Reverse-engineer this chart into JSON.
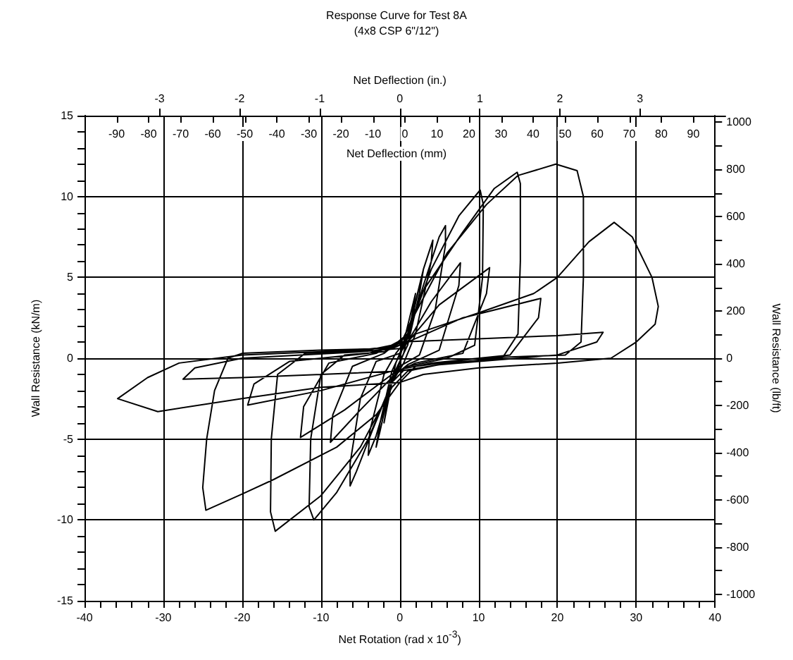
{
  "chart_data": [
    {
      "type": "line",
      "title": "Response Curve for Test 8A",
      "subtitle": "(4x8 CSP 6\"/12\")",
      "xlabel": "Net Rotation (rad x 10$^{-3}$)",
      "ylabel": "Wall Resistance (kN/m)",
      "y2label": "Wall Resistance (lb/ft)",
      "x2label": "Net Deflection (in.)",
      "xlim": [
        -40,
        40
      ],
      "xticks": [
        -40,
        {
          "value": -38,
          "label": null
        },
        {
          "value": -36,
          "label": null
        },
        {
          "value": -34,
          "label": null
        },
        {
          "value": -32,
          "label": null
        },
        -30,
        {
          "value": -28,
          "label": null
        },
        {
          "value": -26,
          "label": null
        },
        {
          "value": -24,
          "label": null
        },
        {
          "value": -22,
          "label": null
        },
        -20,
        {
          "value": -18,
          "label": null
        },
        {
          "value": -16,
          "label": null
        },
        {
          "value": -14,
          "label": null
        },
        {
          "value": -12,
          "label": null
        },
        -10,
        {
          "value": -8,
          "label": null
        },
        {
          "value": -6,
          "label": null
        },
        {
          "value": -4,
          "label": null
        },
        {
          "value": -2,
          "label": null
        },
        0,
        {
          "value": 2,
          "label": null
        },
        {
          "value": 4,
          "label": null
        },
        {
          "value": 6,
          "label": null
        },
        {
          "value": 8,
          "label": null
        },
        10,
        {
          "value": 12,
          "label": null
        },
        {
          "value": 14,
          "label": null
        },
        {
          "value": 16,
          "label": null
        },
        {
          "value": 18,
          "label": null
        },
        20,
        {
          "value": 22,
          "label": null
        },
        {
          "value": 24,
          "label": null
        },
        {
          "value": 26,
          "label": null
        },
        {
          "value": 28,
          "label": null
        },
        30,
        {
          "value": 32,
          "label": null
        },
        {
          "value": 34,
          "label": null
        },
        {
          "value": 36,
          "label": null
        },
        {
          "value": 38,
          "label": null
        },
        40
      ],
      "ylim": [
        -15,
        15
      ],
      "yticks": [
        -15,
        {
          "value": -14,
          "label": null
        },
        {
          "value": -13,
          "label": null
        },
        {
          "value": -12,
          "label": null
        },
        {
          "value": -11,
          "label": null
        },
        -10,
        {
          "value": -9,
          "label": null
        },
        {
          "value": -8,
          "label": null
        },
        {
          "value": -7,
          "label": null
        },
        {
          "value": -6,
          "label": null
        },
        -5,
        {
          "value": -4,
          "label": null
        },
        {
          "value": -3,
          "label": null
        },
        {
          "value": -2,
          "label": null
        },
        {
          "value": -1,
          "label": null
        },
        0,
        {
          "value": 1,
          "label": null
        },
        {
          "value": 2,
          "label": null
        },
        {
          "value": 3,
          "label": null
        },
        {
          "value": 4,
          "label": null
        },
        5,
        {
          "value": 6,
          "label": null
        },
        {
          "value": 7,
          "label": null
        },
        {
          "value": 8,
          "label": null
        },
        {
          "value": 9,
          "label": null
        },
        10,
        {
          "value": 11,
          "label": null
        },
        {
          "value": 12,
          "label": null
        },
        {
          "value": 13,
          "label": null
        },
        {
          "value": 14,
          "label": null
        },
        15
      ],
      "y2lim": [
        -1028,
        1028
      ],
      "y2ticks": [
        -1000,
        {
          "value": -900,
          "label": null
        },
        -800,
        {
          "value": -700,
          "label": null
        },
        -600,
        {
          "value": -500,
          "label": null
        },
        -400,
        {
          "value": -300,
          "label": null
        },
        -200,
        {
          "value": -100,
          "label": null
        },
        0,
        {
          "value": 100,
          "label": null
        },
        200,
        {
          "value": 300,
          "label": null
        },
        400,
        {
          "value": 500,
          "label": null
        },
        600,
        {
          "value": 700,
          "label": null
        },
        800,
        {
          "value": 900,
          "label": null
        },
        1000
      ],
      "x2lim": [
        -3.937,
        3.937
      ],
      "x2ticks": [
        -3,
        -2,
        -1,
        0,
        1,
        2,
        3
      ],
      "grid": true,
      "marker": "none",
      "line_style": "solid",
      "series": [
        {
          "color": "#000000",
          "x": [
            0,
            1,
            2,
            1.5,
            0.5,
            -1,
            -2,
            -1.5,
            -0.5,
            1,
            2.5,
            3,
            2.5,
            1,
            -1,
            -2.5,
            -3,
            -2.5,
            -1,
            1,
            3,
            4.2,
            4,
            2,
            0.5,
            -1,
            -3,
            -4,
            -3.8,
            -2,
            -0.5,
            1,
            3,
            5,
            5.8,
            5.8,
            4.5,
            2.5,
            0,
            -1,
            -3.5,
            -5.5,
            -6.3,
            -6.3,
            -5,
            -3,
            0,
            1,
            4,
            7.7,
            7.5,
            5,
            1,
            -1,
            -5,
            -8.8,
            -8.5,
            -6,
            -2,
            1,
            4,
            7.5,
            10.2,
            10.6,
            10.5,
            9.5,
            6,
            1,
            -1,
            -4,
            -8,
            -10.9,
            -11.5,
            -11.3,
            -10,
            -7,
            -2,
            1,
            5,
            11.4,
            11,
            8,
            2,
            -1,
            -7,
            -12.6,
            -12.2,
            -9,
            -3,
            0.5,
            3,
            8,
            12,
            14.9,
            15.3,
            15.3,
            15,
            13,
            6,
            1,
            -1,
            -5,
            -10,
            -15.8,
            -16.4,
            -16.3,
            -15.5,
            -12,
            -4,
            1,
            8,
            17.9,
            17.6,
            14,
            4,
            -1,
            -10,
            -19.3,
            -18.5,
            -14,
            -4,
            0,
            2,
            6,
            11,
            15,
            19.8,
            22.5,
            23.3,
            23.3,
            23,
            21,
            10,
            2,
            0,
            -3,
            -8,
            -16,
            -20,
            -24.6,
            -25,
            -24.5,
            -23.5,
            -21.8,
            -20,
            -10,
            -2,
            0,
            10,
            20,
            25.8,
            25,
            20,
            5,
            0,
            -10,
            -20,
            -27.5,
            -26,
            -20,
            -5,
            0,
            2,
            10,
            17,
            20,
            24,
            27.2,
            29.5,
            32,
            32.8,
            32.4,
            30,
            26.8,
            20,
            10,
            3,
            0,
            -10,
            -20,
            -30.7,
            -35.8,
            -32,
            -28,
            -20,
            -5,
            0
          ],
          "values": [
            0,
            2,
            4,
            2.5,
            0.3,
            -1.5,
            -4,
            -2.5,
            -0.3,
            1.5,
            4.5,
            5.5,
            4,
            0.8,
            -1.2,
            -4.5,
            -5.5,
            -4,
            -0.8,
            1.3,
            5.5,
            7.3,
            6,
            1.5,
            -0.3,
            -1.5,
            -4.8,
            -6,
            -4.5,
            -1,
            0.3,
            1.2,
            4.5,
            7.5,
            8.2,
            7,
            3,
            0.2,
            -0.5,
            -1.5,
            -4.5,
            -7,
            -7.9,
            -6.5,
            -2.5,
            -0.2,
            0.3,
            1,
            3.5,
            5.9,
            4.5,
            0.5,
            -0.4,
            -1.2,
            -3.2,
            -5.2,
            -3.5,
            -0.5,
            0.3,
            1.5,
            5.5,
            8.8,
            10.4,
            9.5,
            5,
            0.8,
            0,
            -0.5,
            -1.5,
            -5,
            -8.3,
            -10,
            -9.2,
            -5,
            -1,
            0.2,
            0.4,
            1,
            3.3,
            5.6,
            4,
            0.3,
            -0.3,
            -1,
            -3.2,
            -4.9,
            -3,
            -0.3,
            0.3,
            1.2,
            4.2,
            7.8,
            10.5,
            11.5,
            10.8,
            6,
            1.5,
            0,
            -0.3,
            -0.8,
            -1.8,
            -5.5,
            -8.5,
            -10.7,
            -9.5,
            -5,
            -1,
            0.3,
            0.5,
            1,
            2.5,
            3.7,
            2.5,
            0.2,
            -0.3,
            -0.8,
            -2,
            -2.9,
            -1.6,
            -0.2,
            0.3,
            0.8,
            2.8,
            6.5,
            9.5,
            11.3,
            12,
            11.6,
            10,
            5,
            1,
            0.2,
            0,
            -0.5,
            -1.5,
            -3.5,
            -5.5,
            -7.5,
            -8.4,
            -9.4,
            -8,
            -5,
            -2,
            0,
            0.3,
            0.5,
            0.6,
            1,
            1.2,
            1.4,
            1.6,
            1,
            0.2,
            -0.4,
            -0.8,
            -1,
            -1.2,
            -1.3,
            -0.6,
            0,
            0.4,
            0.6,
            1.5,
            2.8,
            4,
            5,
            7.2,
            8.4,
            7.5,
            5,
            3.2,
            2.1,
            1,
            0,
            -0.3,
            -0.6,
            -1,
            -1.5,
            -1.8,
            -2.5,
            -3.3,
            -2.5,
            -1.2,
            -0.3,
            0.2,
            0.5,
            0.8
          ]
        }
      ]
    },
    {
      "type": "line",
      "xlabel": "Net Deflection (mm)",
      "xlim": [
        -100,
        100
      ],
      "xticks": [
        -90,
        -80,
        -70,
        -60,
        -50,
        -40,
        -30,
        -20,
        -10,
        0,
        10,
        20,
        30,
        40,
        50,
        60,
        70,
        80,
        90
      ],
      "ylim": [
        -15,
        15
      ],
      "tick_labels": "x"
    }
  ]
}
